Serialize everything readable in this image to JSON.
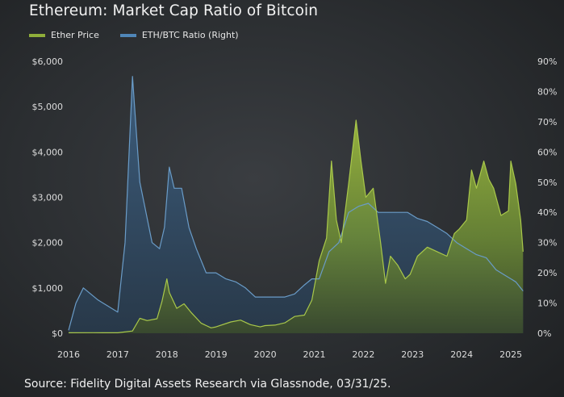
{
  "title": "Ethereum: Market Cap Ratio of Bitcoin",
  "source": "Source: Fidelity Digital Assets Research via Glassnode, 03/31/25.",
  "colors": {
    "ether_price": "#8fae3a",
    "eth_btc_ratio": "#4f86b8",
    "background": "#2d3033"
  },
  "chart_data": {
    "type": "area",
    "title": "Ethereum: Market Cap Ratio of Bitcoin",
    "x_ticks": [
      "2016",
      "2017",
      "2018",
      "2019",
      "2020",
      "2021",
      "2022",
      "2023",
      "2024",
      "2025"
    ],
    "y_left": {
      "label": "",
      "range": [
        0,
        6000
      ],
      "ticks": [
        "$0",
        "$1,000",
        "$2,000",
        "$3,000",
        "$4,000",
        "$5,000",
        "$6,000"
      ]
    },
    "y_right": {
      "label": "",
      "range": [
        0,
        90
      ],
      "ticks": [
        "0%",
        "10%",
        "20%",
        "30%",
        "40%",
        "50%",
        "60%",
        "70%",
        "80%",
        "90%"
      ]
    },
    "grid": false,
    "legend_placement": "top-left",
    "series": [
      {
        "name": "Ether Price",
        "axis": "left",
        "unit": "USD",
        "x": [
          2016.0,
          2016.5,
          2017.0,
          2017.3,
          2017.45,
          2017.6,
          2017.8,
          2017.9,
          2018.0,
          2018.05,
          2018.2,
          2018.35,
          2018.5,
          2018.7,
          2018.9,
          2019.0,
          2019.3,
          2019.5,
          2019.7,
          2019.9,
          2020.0,
          2020.2,
          2020.4,
          2020.6,
          2020.8,
          2020.95,
          2021.1,
          2021.25,
          2021.35,
          2021.45,
          2021.55,
          2021.7,
          2021.85,
          2021.95,
          2022.05,
          2022.2,
          2022.35,
          2022.45,
          2022.55,
          2022.7,
          2022.85,
          2022.95,
          2023.1,
          2023.3,
          2023.5,
          2023.7,
          2023.85,
          2023.95,
          2024.1,
          2024.2,
          2024.3,
          2024.45,
          2024.55,
          2024.65,
          2024.8,
          2024.95,
          2025.0,
          2025.1,
          2025.2,
          2025.25
        ],
        "values": [
          10,
          12,
          10,
          50,
          330,
          280,
          320,
          700,
          1200,
          900,
          550,
          650,
          450,
          220,
          120,
          140,
          250,
          290,
          190,
          140,
          170,
          180,
          230,
          370,
          400,
          730,
          1600,
          2100,
          3800,
          2500,
          2000,
          3300,
          4700,
          3800,
          3000,
          3200,
          2000,
          1100,
          1700,
          1500,
          1200,
          1300,
          1700,
          1900,
          1800,
          1700,
          2200,
          2300,
          2500,
          3600,
          3200,
          3800,
          3400,
          3200,
          2600,
          2700,
          3800,
          3300,
          2500,
          1800
        ]
      },
      {
        "name": "ETH/BTC Ratio (Right)",
        "axis": "right",
        "unit": "%",
        "x": [
          2016.0,
          2016.15,
          2016.3,
          2016.45,
          2016.6,
          2016.8,
          2017.0,
          2017.15,
          2017.3,
          2017.45,
          2017.55,
          2017.7,
          2017.85,
          2017.95,
          2018.05,
          2018.15,
          2018.3,
          2018.45,
          2018.6,
          2018.8,
          2019.0,
          2019.2,
          2019.4,
          2019.6,
          2019.8,
          2020.0,
          2020.2,
          2020.4,
          2020.6,
          2020.8,
          2020.95,
          2021.1,
          2021.3,
          2021.5,
          2021.7,
          2021.9,
          2022.1,
          2022.3,
          2022.5,
          2022.7,
          2022.9,
          2023.1,
          2023.3,
          2023.5,
          2023.7,
          2023.9,
          2024.1,
          2024.3,
          2024.5,
          2024.7,
          2024.9,
          2025.1,
          2025.25
        ],
        "values": [
          1,
          10,
          15,
          13,
          11,
          9,
          7,
          30,
          85,
          50,
          42,
          30,
          28,
          35,
          55,
          48,
          48,
          35,
          28,
          20,
          20,
          18,
          17,
          15,
          12,
          12,
          12,
          12,
          13,
          16,
          18,
          18,
          27,
          30,
          40,
          42,
          43,
          40,
          40,
          40,
          40,
          38,
          37,
          35,
          33,
          30,
          28,
          26,
          25,
          21,
          19,
          17,
          14
        ]
      }
    ]
  }
}
